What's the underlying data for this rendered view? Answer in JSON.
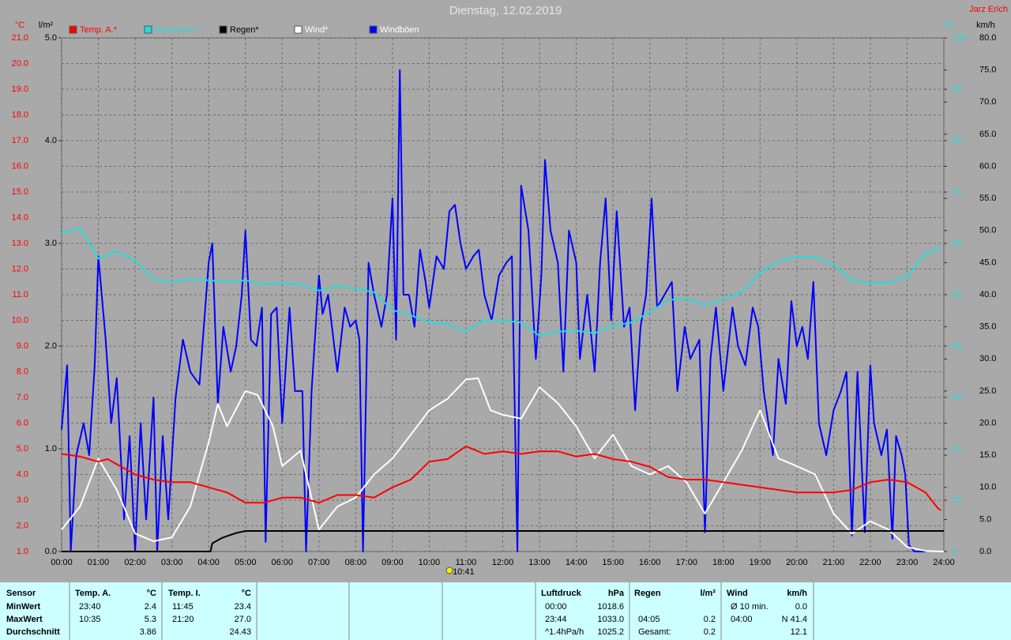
{
  "chart_data": {
    "type": "line",
    "title": "Dienstag, 12.02.2019",
    "author": "Jarz Erich",
    "marker_label": "10:41",
    "marker_x": 10.68,
    "units": {
      "y": "°C",
      "y2": "l/m²",
      "y3": "%",
      "y4": "km/h"
    },
    "xlim": [
      0,
      24
    ],
    "xticks": [
      {
        "value": 0,
        "label": "00:00"
      },
      {
        "value": 1,
        "label": "01:00"
      },
      {
        "value": 2,
        "label": "02:00"
      },
      {
        "value": 3,
        "label": "03:00"
      },
      {
        "value": 4,
        "label": "04:00"
      },
      {
        "value": 5,
        "label": "05:00"
      },
      {
        "value": 6,
        "label": "06:00"
      },
      {
        "value": 7,
        "label": "07:00"
      },
      {
        "value": 8,
        "label": "08:00"
      },
      {
        "value": 9,
        "label": "09:00"
      },
      {
        "value": 10,
        "label": "10:00"
      },
      {
        "value": 11,
        "label": "11:00"
      },
      {
        "value": 12,
        "label": "12:00"
      },
      {
        "value": 13,
        "label": "13:00"
      },
      {
        "value": 14,
        "label": "14:00"
      },
      {
        "value": 15,
        "label": "15:00"
      },
      {
        "value": 16,
        "label": "16:00"
      },
      {
        "value": 17,
        "label": "17:00"
      },
      {
        "value": 18,
        "label": "18:00"
      },
      {
        "value": 19,
        "label": "19:00"
      },
      {
        "value": 20,
        "label": "20:00"
      },
      {
        "value": 21,
        "label": "21:00"
      },
      {
        "value": 22,
        "label": "22:00"
      },
      {
        "value": 23,
        "label": "23:00"
      },
      {
        "value": 24,
        "label": "24:00"
      }
    ],
    "ylim": [
      1,
      21
    ],
    "yticks": [
      {
        "value": 1,
        "label": "1.0"
      },
      {
        "value": 2,
        "label": "2.0"
      },
      {
        "value": 3,
        "label": "3.0"
      },
      {
        "value": 4,
        "label": "4.0"
      },
      {
        "value": 5,
        "label": "5.0"
      },
      {
        "value": 6,
        "label": "6.0"
      },
      {
        "value": 7,
        "label": "7.0"
      },
      {
        "value": 8,
        "label": "8.0"
      },
      {
        "value": 9,
        "label": "9.0"
      },
      {
        "value": 10,
        "label": "10.0"
      },
      {
        "value": 11,
        "label": "11.0"
      },
      {
        "value": 12,
        "label": "12.0"
      },
      {
        "value": 13,
        "label": "13.0"
      },
      {
        "value": 14,
        "label": "14.0"
      },
      {
        "value": 15,
        "label": "15.0"
      },
      {
        "value": 16,
        "label": "16.0"
      },
      {
        "value": 17,
        "label": "17.0"
      },
      {
        "value": 18,
        "label": "18.0"
      },
      {
        "value": 19,
        "label": "19.0"
      },
      {
        "value": 20,
        "label": "20.0"
      },
      {
        "value": 21,
        "label": "21.0"
      }
    ],
    "y2lim": [
      0,
      5
    ],
    "y2ticks": [
      {
        "value": 0,
        "label": "0.0"
      },
      {
        "value": 1,
        "label": "1.0"
      },
      {
        "value": 2,
        "label": "2.0"
      },
      {
        "value": 3,
        "label": "3.0"
      },
      {
        "value": 4,
        "label": "4.0"
      },
      {
        "value": 5,
        "label": "5.0"
      }
    ],
    "y3lim": [
      0,
      100
    ],
    "y3ticks": [
      0,
      10,
      20,
      30,
      40,
      50,
      60,
      70,
      80,
      90,
      100
    ],
    "y4lim": [
      0,
      80
    ],
    "y4ticks": [
      {
        "value": 0,
        "label": "0.0"
      },
      {
        "value": 5,
        "label": "5.0"
      },
      {
        "value": 10,
        "label": "10.0"
      },
      {
        "value": 15,
        "label": "15.0"
      },
      {
        "value": 20,
        "label": "20.0"
      },
      {
        "value": 25,
        "label": "25.0"
      },
      {
        "value": 30,
        "label": "30.0"
      },
      {
        "value": 35,
        "label": "35.0"
      },
      {
        "value": 40,
        "label": "40.0"
      },
      {
        "value": 45,
        "label": "45.0"
      },
      {
        "value": 50,
        "label": "50.0"
      },
      {
        "value": 55,
        "label": "55.0"
      },
      {
        "value": 60,
        "label": "60.0"
      },
      {
        "value": 65,
        "label": "65.0"
      },
      {
        "value": 70,
        "label": "70.0"
      },
      {
        "value": 75,
        "label": "75.0"
      },
      {
        "value": 80,
        "label": "80.0"
      }
    ],
    "grid": true,
    "series": [
      {
        "name": "Windböen",
        "color": "#0000ff",
        "axis": "y4",
        "x": [
          0,
          0.15,
          0.25,
          0.4,
          0.6,
          0.75,
          0.9,
          1.0,
          1.2,
          1.35,
          1.5,
          1.7,
          1.85,
          2.0,
          2.15,
          2.3,
          2.5,
          2.6,
          2.75,
          2.9,
          3.1,
          3.3,
          3.5,
          3.75,
          4.0,
          4.1,
          4.25,
          4.4,
          4.6,
          4.75,
          4.9,
          5.0,
          5.15,
          5.3,
          5.45,
          5.55,
          5.7,
          5.85,
          6.0,
          6.2,
          6.35,
          6.55,
          6.65,
          6.8,
          7.0,
          7.1,
          7.25,
          7.5,
          7.7,
          7.85,
          8.0,
          8.1,
          8.2,
          8.35,
          8.5,
          8.7,
          8.85,
          9.0,
          9.1,
          9.2,
          9.3,
          9.45,
          9.6,
          9.75,
          9.9,
          10.0,
          10.2,
          10.4,
          10.55,
          10.7,
          10.85,
          11.0,
          11.2,
          11.35,
          11.5,
          11.7,
          11.9,
          12.1,
          12.25,
          12.4,
          12.5,
          12.7,
          12.9,
          13.05,
          13.15,
          13.3,
          13.5,
          13.65,
          13.8,
          14.0,
          14.1,
          14.3,
          14.5,
          14.65,
          14.8,
          14.95,
          15.1,
          15.3,
          15.45,
          15.6,
          15.75,
          15.9,
          16.05,
          16.2,
          16.4,
          16.6,
          16.75,
          16.95,
          17.1,
          17.35,
          17.5,
          17.65,
          17.8,
          18.0,
          18.25,
          18.4,
          18.6,
          18.8,
          18.95,
          19.1,
          19.35,
          19.5,
          19.7,
          19.85,
          20.0,
          20.15,
          20.3,
          20.45,
          20.6,
          20.8,
          21.0,
          21.2,
          21.35,
          21.5,
          21.65,
          21.85,
          22.0,
          22.1,
          22.3,
          22.45,
          22.6,
          22.7,
          22.85,
          22.95,
          23.05,
          23.2,
          23.5
        ],
        "values": [
          19,
          29,
          0,
          15,
          20,
          15,
          29,
          46,
          33,
          20,
          27,
          5,
          18,
          0,
          20,
          5,
          24,
          0,
          18,
          5,
          24,
          33,
          28,
          26,
          45,
          48,
          23,
          35,
          28,
          32,
          40,
          50,
          33,
          32,
          38,
          1.5,
          37,
          38,
          20,
          38,
          25,
          25,
          0,
          25,
          43,
          37,
          40,
          28,
          38,
          35,
          36,
          33,
          0,
          45,
          40,
          35,
          40,
          55,
          33,
          75,
          40,
          40,
          35,
          47,
          42,
          38,
          46,
          44,
          53,
          54,
          48,
          44,
          46,
          47,
          40,
          36,
          43,
          45,
          46,
          0,
          57,
          50,
          30,
          43,
          61,
          50,
          45,
          28,
          50,
          45,
          30,
          40,
          28,
          45,
          55,
          36,
          53,
          35,
          38,
          22,
          35,
          40,
          55,
          38,
          40,
          42,
          25,
          35,
          30,
          33,
          3,
          30,
          38,
          25,
          38,
          32,
          29,
          38,
          35,
          25,
          15,
          30,
          23,
          39,
          32,
          35,
          30,
          42,
          20,
          15,
          22,
          25,
          28,
          2.5,
          28,
          3,
          29,
          20,
          15,
          19,
          2,
          18,
          15,
          12,
          1,
          0,
          0
        ]
      },
      {
        "name": "Wind*",
        "color": "#ffffff",
        "axis": "y4",
        "x": [
          0,
          0.5,
          1,
          1.5,
          2,
          2.5,
          3,
          3.5,
          4,
          4.25,
          4.5,
          5,
          5.33,
          5.75,
          6,
          6.5,
          7,
          7.5,
          8,
          8.5,
          9,
          9.5,
          10,
          10.5,
          11,
          11.33,
          11.67,
          12,
          12.5,
          13,
          13.5,
          14,
          14.5,
          15,
          15.5,
          16,
          16.5,
          17,
          17.5,
          18,
          18.5,
          19,
          19.5,
          20,
          20.5,
          21,
          21.5,
          22,
          22.5,
          23,
          23.5,
          24
        ],
        "values": [
          3.4,
          7,
          14.5,
          9.6,
          2.8,
          1.6,
          2.2,
          7,
          17,
          23,
          19.5,
          25,
          24.4,
          19.5,
          13.3,
          15.7,
          3.4,
          7,
          8.4,
          12,
          14.5,
          18.2,
          22,
          23.8,
          26.8,
          27,
          22,
          21.3,
          20.7,
          25.6,
          23.1,
          19.5,
          14.5,
          18.2,
          13.3,
          12,
          13.3,
          10.8,
          5.9,
          10.8,
          15.7,
          22,
          14.5,
          13.3,
          12,
          5.9,
          2.8,
          4.7,
          3.4,
          0.7,
          0.1,
          0
        ]
      },
      {
        "name": "Regen*",
        "color": "#000000",
        "axis": "y2",
        "x": [
          0,
          4.05,
          4.1,
          4.2,
          4.35,
          4.5,
          4.75,
          5.0,
          24
        ],
        "values": [
          0,
          0,
          0.08,
          0.1,
          0.13,
          0.15,
          0.18,
          0.2,
          0.2
        ]
      },
      {
        "name": "Feuchte A.*",
        "color": "#22dddd",
        "axis": "y3",
        "x": [
          0,
          0.5,
          1,
          1.5,
          2,
          2.5,
          3,
          3.5,
          4,
          4.5,
          5,
          5.5,
          6,
          6.5,
          7,
          7.5,
          8,
          8.5,
          9,
          9.5,
          10,
          10.5,
          11,
          11.5,
          12,
          12.5,
          13,
          13.5,
          14,
          14.5,
          15,
          15.5,
          16,
          16.5,
          17,
          17.5,
          18,
          18.5,
          19,
          19.5,
          20,
          20.5,
          21,
          21.5,
          22,
          22.5,
          23,
          23.5,
          23.92
        ],
        "values": [
          62,
          63,
          57,
          58.5,
          56.6,
          53,
          52.5,
          53,
          52.8,
          52.5,
          52.8,
          52,
          52.3,
          52,
          50.8,
          51.7,
          51.2,
          50.5,
          47,
          46,
          44.6,
          44.3,
          42.8,
          45,
          45,
          44.6,
          42,
          42.8,
          43,
          42.5,
          44,
          44.6,
          46.6,
          49,
          49.2,
          48,
          49.2,
          50.5,
          54.3,
          56.6,
          57.4,
          57.4,
          55.8,
          52.8,
          52.3,
          52.3,
          53.5,
          58,
          59
        ]
      },
      {
        "name": "Temp. A.*",
        "color": "#ff0000",
        "axis": "y",
        "x": [
          0,
          0.5,
          1,
          1.25,
          1.5,
          2,
          2.5,
          3,
          3.5,
          4,
          4.5,
          5,
          5.5,
          6,
          6.5,
          7,
          7.5,
          8,
          8.5,
          9,
          9.5,
          10,
          10.5,
          11,
          11.5,
          12,
          12.5,
          13,
          13.5,
          14,
          14.5,
          15,
          15.5,
          16,
          16.5,
          17,
          17.5,
          18,
          18.5,
          19,
          19.5,
          20,
          20.5,
          21,
          21.5,
          22,
          22.5,
          23,
          23.5,
          23.83,
          23.92
        ],
        "values": [
          4.8,
          4.7,
          4.5,
          4.6,
          4.4,
          4.0,
          3.8,
          3.7,
          3.7,
          3.5,
          3.3,
          2.9,
          2.9,
          3.1,
          3.1,
          2.9,
          3.2,
          3.2,
          3.1,
          3.5,
          3.8,
          4.5,
          4.6,
          5.1,
          4.8,
          4.9,
          4.8,
          4.9,
          4.9,
          4.7,
          4.8,
          4.6,
          4.5,
          4.3,
          3.9,
          3.8,
          3.8,
          3.7,
          3.6,
          3.5,
          3.4,
          3.3,
          3.3,
          3.3,
          3.4,
          3.7,
          3.8,
          3.7,
          3.3,
          2.7,
          2.6
        ]
      }
    ]
  },
  "stats": {
    "groups": [
      {
        "title": "Sensor",
        "rows": [
          [
            "MinWert"
          ],
          [
            "MaxWert"
          ],
          [
            "Durchschnitt"
          ]
        ]
      },
      {
        "title": "Temp. A.",
        "unit": "°C",
        "rows": [
          [
            "23:40",
            "2.4"
          ],
          [
            "10:35",
            "5.3"
          ],
          [
            null,
            "3.86"
          ]
        ]
      },
      {
        "title": "Temp. I.",
        "unit": "°C",
        "rows": [
          [
            "11:45",
            "23.4"
          ],
          [
            "21:20",
            "27.0"
          ],
          [
            null,
            "24.43"
          ]
        ]
      },
      {
        "title": "Luftdruck",
        "unit": "hPa",
        "rows": [
          [
            "00:00",
            "1018.6"
          ],
          [
            "23:44",
            "1033.0"
          ],
          [
            "^1.4hPa/h",
            "1025.2"
          ]
        ]
      },
      {
        "title": "Regen",
        "unit": "l/m²",
        "rows": [
          null,
          [
            "04:05",
            "0.2"
          ],
          [
            "Gesamt:",
            "0.2"
          ]
        ]
      },
      {
        "title": "Wind",
        "unit": "km/h",
        "rows": [
          [
            "Ø 10 min.",
            "0.0"
          ],
          [
            "04:00",
            "N 41.4"
          ],
          [
            null,
            "12.1"
          ]
        ]
      }
    ]
  }
}
